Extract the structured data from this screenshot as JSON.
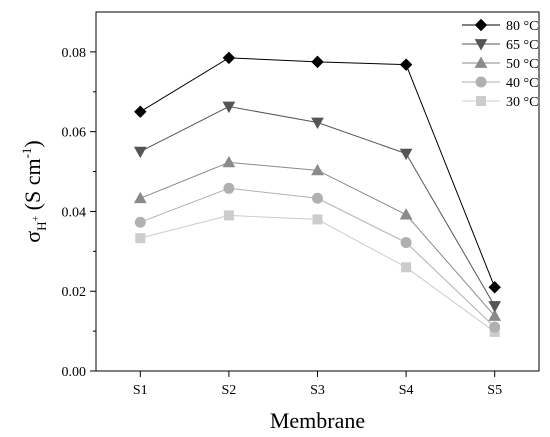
{
  "chart_data": {
    "type": "line",
    "categories": [
      "S1",
      "S2",
      "S3",
      "S4",
      "S5"
    ],
    "xlabel": "Membrane",
    "ylabel": {
      "main": "σ",
      "sub": "H",
      "sup_in_sub": "+",
      "unit": " (S cm",
      "unit_sup": "-1",
      "unit_close": ")"
    },
    "ylim": [
      0,
      0.09
    ],
    "yticks": [
      0.0,
      0.02,
      0.04,
      0.06,
      0.08
    ],
    "ytick_labels": [
      "0.00",
      "0.02",
      "0.04",
      "0.06",
      "0.08"
    ],
    "grid": false,
    "legend_position": "top-right",
    "series": [
      {
        "name": "80 °C",
        "values": [
          0.065,
          0.0785,
          0.0775,
          0.0768,
          0.021
        ],
        "color": "#000000",
        "marker": "diamond"
      },
      {
        "name": "65 °C",
        "values": [
          0.055,
          0.0663,
          0.0623,
          0.0545,
          0.0163
        ],
        "color": "#555555",
        "marker": "triangle-down"
      },
      {
        "name": "50 °C",
        "values": [
          0.0433,
          0.0523,
          0.0503,
          0.0392,
          0.0138
        ],
        "color": "#8a8a8a",
        "marker": "triangle-up"
      },
      {
        "name": "40 °C",
        "values": [
          0.0373,
          0.0458,
          0.0433,
          0.0322,
          0.011
        ],
        "color": "#b0b0b0",
        "marker": "circle"
      },
      {
        "name": "30 °C",
        "values": [
          0.0333,
          0.039,
          0.038,
          0.026,
          0.0098
        ],
        "color": "#cccccc",
        "marker": "square"
      }
    ]
  }
}
